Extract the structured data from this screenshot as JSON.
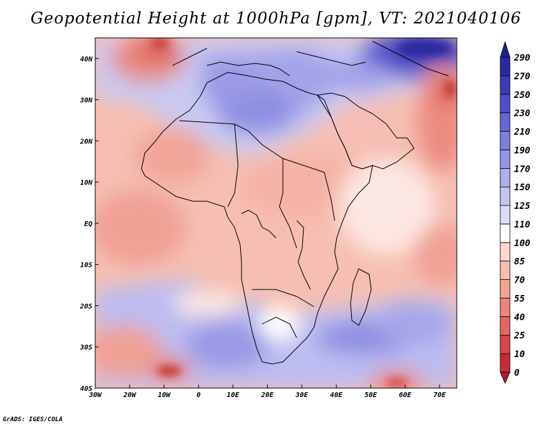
{
  "title": "Geopotential Height at 1000hPa [gpm], VT: 2021040106",
  "credit": "GrADS: IGES/COLA",
  "map": {
    "lon_range": [
      -30,
      75
    ],
    "lat_range": [
      -40,
      45
    ],
    "lon_ticks": [
      {
        "v": -30,
        "label": "30W"
      },
      {
        "v": -20,
        "label": "20W"
      },
      {
        "v": -10,
        "label": "10W"
      },
      {
        "v": 0,
        "label": "0"
      },
      {
        "v": 10,
        "label": "10E"
      },
      {
        "v": 20,
        "label": "20E"
      },
      {
        "v": 30,
        "label": "30E"
      },
      {
        "v": 40,
        "label": "40E"
      },
      {
        "v": 50,
        "label": "50E"
      },
      {
        "v": 60,
        "label": "60E"
      },
      {
        "v": 70,
        "label": "70E"
      }
    ],
    "lat_ticks": [
      {
        "v": 40,
        "label": "40N"
      },
      {
        "v": 30,
        "label": "30N"
      },
      {
        "v": 20,
        "label": "20N"
      },
      {
        "v": 10,
        "label": "10N"
      },
      {
        "v": 0,
        "label": "EQ"
      },
      {
        "v": -10,
        "label": "10S"
      },
      {
        "v": -20,
        "label": "20S"
      },
      {
        "v": -30,
        "label": "30S"
      },
      {
        "v": -40,
        "label": "40S"
      }
    ]
  },
  "colorbar": {
    "levels": [
      "0",
      "10",
      "25",
      "40",
      "55",
      "70",
      "85",
      "100",
      "110",
      "125",
      "150",
      "170",
      "190",
      "210",
      "230",
      "250",
      "270",
      "290"
    ],
    "colors": [
      "#b2182b",
      "#c52c35",
      "#d6464a",
      "#e46660",
      "#ee8479",
      "#f4a190",
      "#f9bcad",
      "#fcd8cf",
      "#ffffff",
      "#dcdcf8",
      "#c4c4f4",
      "#aeaeee",
      "#9696e8",
      "#7e7edf",
      "#6666d4",
      "#4e4ec6",
      "#3a3ab5",
      "#2a2aa0",
      "#1f1f8c"
    ]
  },
  "colors": {
    "coast": "#000000",
    "background": "#ffffff"
  }
}
